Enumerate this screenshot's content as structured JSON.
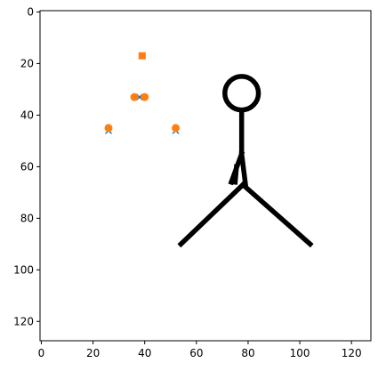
{
  "chart_data": {
    "type": "scatter",
    "title": "",
    "xlabel": "",
    "ylabel": "",
    "xlim": [
      -0.5,
      127.5
    ],
    "ylim": [
      127.5,
      -0.5
    ],
    "y_inverted": true,
    "grid": false,
    "legend": "none",
    "x_ticks": [
      0,
      20,
      40,
      60,
      80,
      100,
      120
    ],
    "y_ticks": [
      0,
      20,
      40,
      60,
      80,
      100,
      120
    ],
    "x_tick_labels": [
      "0",
      "20",
      "40",
      "60",
      "80",
      "100",
      "120"
    ],
    "y_tick_labels": [
      "0",
      "20",
      "40",
      "60",
      "80",
      "100",
      "120"
    ],
    "background_image": "stick-figure",
    "series": [
      {
        "marker": "x",
        "color": "#1f77b4",
        "points": [
          {
            "x": 39,
            "y": 17
          },
          {
            "x": 38,
            "y": 33
          },
          {
            "x": 26,
            "y": 46
          },
          {
            "x": 52,
            "y": 46
          }
        ]
      },
      {
        "marker": "circle",
        "color": "#ff7f0e",
        "points": [
          {
            "x": 39,
            "y": 17,
            "marker": "square"
          },
          {
            "x": 36,
            "y": 33
          },
          {
            "x": 40,
            "y": 33
          },
          {
            "x": 26,
            "y": 45
          },
          {
            "x": 52,
            "y": 45
          }
        ]
      }
    ]
  }
}
